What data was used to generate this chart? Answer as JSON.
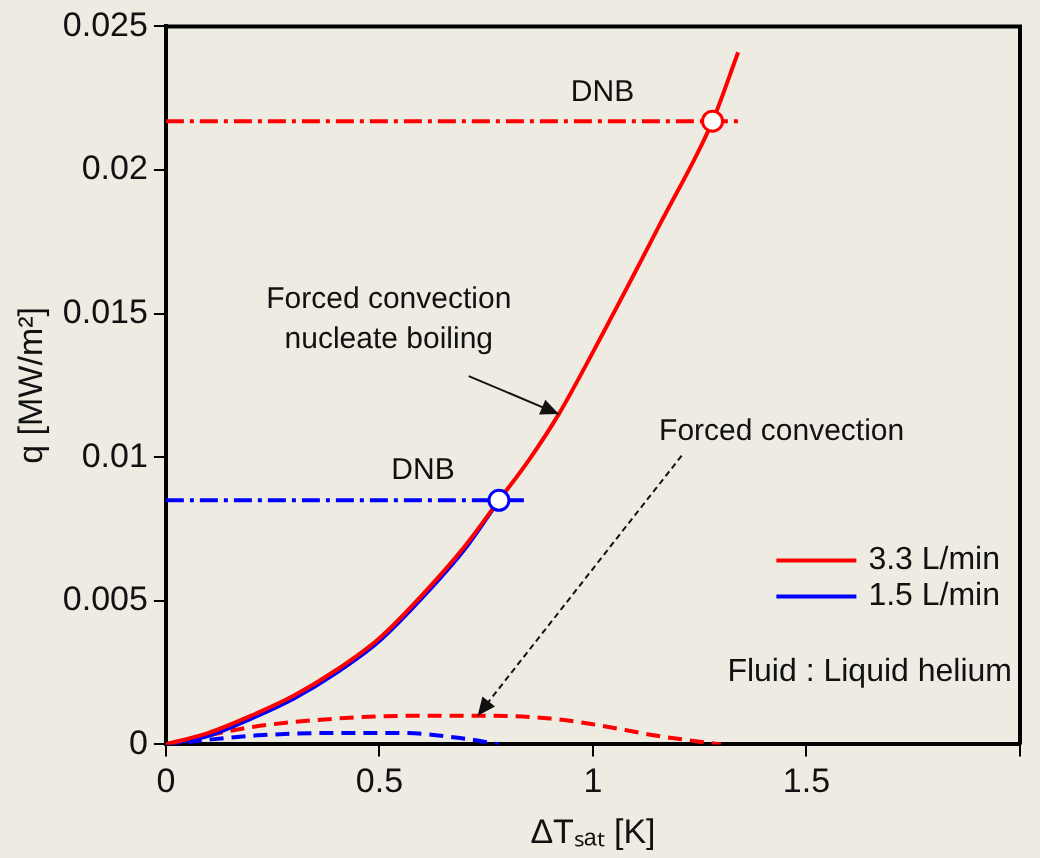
{
  "chart_data": {
    "type": "line",
    "xlabel": "ΔTₛₐₜ [K]",
    "ylabel": "q [MW/m²]",
    "xlim": [
      0,
      2
    ],
    "xticks": [
      0,
      0.5,
      1,
      1.5,
      {
        "value": 2,
        "label": null
      }
    ],
    "ylim": [
      0,
      0.025
    ],
    "yticks": [
      0,
      0.005,
      0.01,
      0.015,
      0.02,
      0.025
    ],
    "grid": false,
    "legend": "right",
    "marker": "none",
    "series": [
      {
        "name": "3.3 L/min",
        "color": "#ff0000",
        "x": [
          0,
          0.1,
          0.2,
          0.3,
          0.4,
          0.5,
          0.6,
          0.7,
          0.78,
          0.85,
          0.92,
          1.03,
          1.16,
          1.28,
          1.34
        ],
        "values": [
          0,
          0.0004,
          0.001,
          0.0017,
          0.0026,
          0.0037,
          0.0052,
          0.0069,
          0.0085,
          0.0099,
          0.0115,
          0.0145,
          0.0182,
          0.0217,
          0.0241
        ]
      },
      {
        "name": "1.5 L/min",
        "color": "#0000ff",
        "x": [
          0,
          0.1,
          0.2,
          0.3,
          0.4,
          0.5,
          0.6,
          0.7,
          0.78
        ],
        "values": [
          0,
          0.0003,
          0.0009,
          0.0016,
          0.0025,
          0.0036,
          0.0051,
          0.0068,
          0.0085
        ]
      },
      {
        "color": "#ff0000",
        "line_style": "dashed",
        "x": [
          0,
          0.2,
          0.4,
          0.6,
          0.75,
          0.9,
          1.0,
          1.15,
          1.3
        ],
        "values": [
          0,
          0.0006,
          0.0009,
          0.001,
          0.001,
          0.0009,
          0.0007,
          0.0003,
          0
        ]
      },
      {
        "color": "#0000ff",
        "line_style": "dashed",
        "x": [
          0,
          0.2,
          0.4,
          0.55,
          0.7,
          0.78
        ],
        "values": [
          0,
          0.0003,
          0.0004,
          0.0004,
          0.0002,
          0
        ]
      },
      {
        "color": "#ff0000",
        "line_style": "dotted",
        "x": [
          0,
          1.35
        ],
        "values": [
          0.0217,
          0.0217
        ]
      },
      {
        "color": "#0000ff",
        "line_style": "dotted",
        "x": [
          0,
          0.85
        ],
        "values": [
          0.0085,
          0.0085
        ]
      },
      {
        "type": "scatter",
        "color": "#ff0000",
        "marker": "circle",
        "x": [
          1.28
        ],
        "values": [
          0.0217
        ]
      },
      {
        "type": "scatter",
        "color": "#0000ff",
        "marker": "circle",
        "x": [
          0.78
        ],
        "values": [
          0.0085
        ]
      }
    ],
    "annotations": [
      {
        "text": "DNB",
        "x": 1.28,
        "y": 0.0217
      },
      {
        "text": "DNB",
        "x": 0.78,
        "y": 0.0085
      },
      {
        "text": "Forced convection\nnucleate boiling",
        "x": 0.92,
        "y": 0.0115
      },
      {
        "text": "Forced convection",
        "x": 0.73,
        "y": 0.001
      },
      "Fluid : Liquid helium"
    ]
  }
}
